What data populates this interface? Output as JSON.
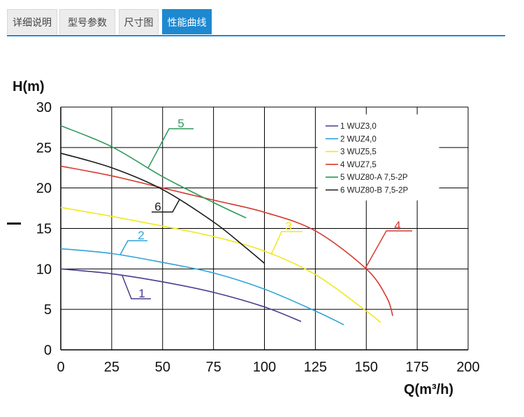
{
  "tabs": [
    {
      "label": "详细说明",
      "active": false
    },
    {
      "label": "型号参数",
      "active": false
    },
    {
      "label": "尺寸图",
      "active": false
    },
    {
      "label": "性能曲线",
      "active": true
    }
  ],
  "colors": {
    "accent": "#1e88d0",
    "grid": "#000000"
  },
  "chart_data": {
    "type": "line",
    "title": "",
    "xlabel": "Q(m³/h)",
    "ylabel": "H(m)",
    "xlim": [
      0,
      200
    ],
    "ylim": [
      0,
      30
    ],
    "xticks": [
      "0",
      "25",
      "50",
      "75",
      "100",
      "125",
      "150",
      "175",
      "200"
    ],
    "yticks": [
      "0",
      "5",
      "10",
      "15",
      "20",
      "25",
      "30"
    ],
    "grid": true,
    "legend_position": "top-right",
    "series": [
      {
        "name": "1 WUZ3,0",
        "label": "1",
        "color": "#4a3a8c",
        "x": [
          0,
          25,
          50,
          75,
          100,
          118
        ],
        "y": [
          10,
          9.4,
          8.4,
          7.1,
          5.3,
          3.5
        ]
      },
      {
        "name": "2 WUZ4,0",
        "label": "2",
        "color": "#2ea3d8",
        "x": [
          0,
          25,
          50,
          75,
          100,
          125,
          139
        ],
        "y": [
          12.5,
          11.9,
          10.8,
          9.5,
          7.5,
          4.8,
          3.1
        ]
      },
      {
        "name": "3 WUZ5,5",
        "label": "3",
        "color": "#f0e81e",
        "x": [
          0,
          25,
          50,
          75,
          100,
          125,
          150,
          157
        ],
        "y": [
          17.6,
          16.5,
          15.3,
          14,
          12.2,
          9.3,
          4.8,
          3.4
        ]
      },
      {
        "name": "4 WUZ7,5",
        "label": "4",
        "color": "#d63a2e",
        "x": [
          0,
          25,
          50,
          75,
          100,
          125,
          150,
          160,
          163
        ],
        "y": [
          22.7,
          21.5,
          20,
          18.5,
          17,
          14.7,
          10,
          6.5,
          4.2
        ]
      },
      {
        "name": "5 WUZ80-A 7,5-2P",
        "label": "5",
        "color": "#2e9a5a",
        "x": [
          0,
          25,
          50,
          75,
          91
        ],
        "y": [
          27.7,
          25.1,
          21.4,
          18.2,
          16.3
        ]
      },
      {
        "name": "6 WUZ80-B 7,5-2P",
        "label": "6",
        "color": "#1a1a1a",
        "x": [
          0,
          25,
          50,
          75,
          90,
          100
        ],
        "y": [
          24.3,
          22.5,
          19.8,
          15.8,
          12.8,
          10.7
        ]
      }
    ]
  }
}
